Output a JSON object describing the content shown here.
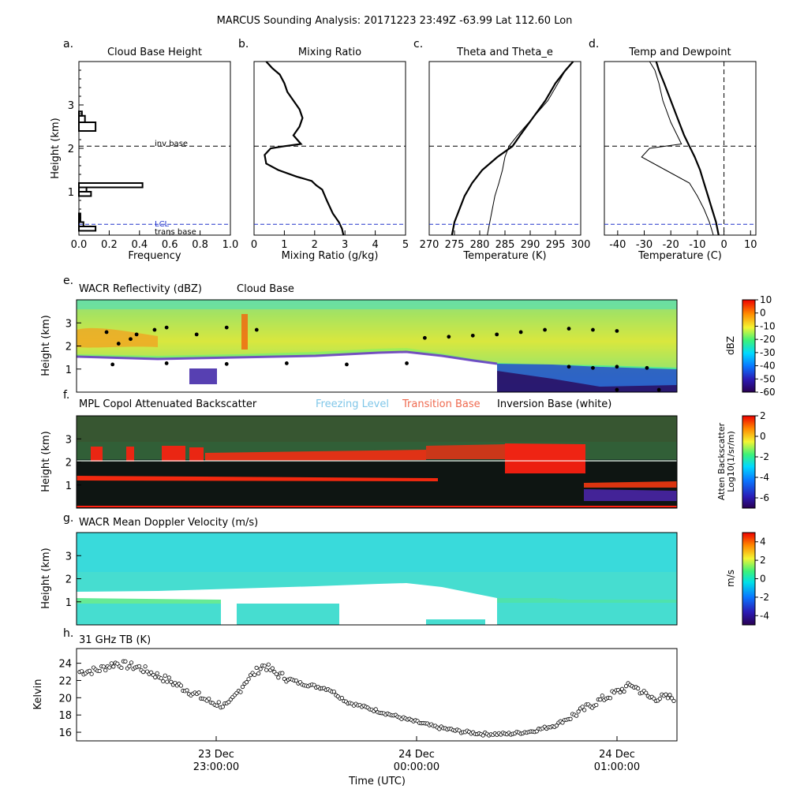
{
  "figure": {
    "title": "MARCUS Sounding Analysis: 20171223 23:49Z   -63.99 Lat  112.60 Lon",
    "x_axis_label": "Time (UTC)",
    "time_ticks": [
      {
        "date": "23 Dec",
        "time": "23:00:00"
      },
      {
        "date": "24 Dec",
        "time": "00:00:00"
      },
      {
        "date": "24 Dec",
        "time": "01:00:00"
      }
    ]
  },
  "chart_data": [
    {
      "id": "a",
      "letter": "a.",
      "type": "bar",
      "title": "Cloud Base Height",
      "xlabel": "Frequency",
      "ylabel": "Height (km)",
      "xlim": [
        0.0,
        1.0
      ],
      "ylim": [
        0,
        4
      ],
      "xticks": [
        "0.0",
        "0.2",
        "0.4",
        "0.6",
        "0.8",
        "1.0"
      ],
      "yticks": [
        "1",
        "2",
        "3"
      ],
      "bins": [
        {
          "lo": 0.1,
          "hi": 0.2,
          "v": 0.11
        },
        {
          "lo": 0.2,
          "hi": 0.3,
          "v": 0.03
        },
        {
          "lo": 0.3,
          "hi": 0.5,
          "v": 0.01
        },
        {
          "lo": 0.9,
          "hi": 1.0,
          "v": 0.08
        },
        {
          "lo": 1.0,
          "hi": 1.1,
          "v": 0.05
        },
        {
          "lo": 1.1,
          "hi": 1.2,
          "v": 0.42
        },
        {
          "lo": 2.4,
          "hi": 2.6,
          "v": 0.11
        },
        {
          "lo": 2.6,
          "hi": 2.75,
          "v": 0.04
        },
        {
          "lo": 2.75,
          "hi": 2.85,
          "v": 0.02
        }
      ],
      "inversion_base_km": 2.05,
      "lcl_km": 0.25,
      "annotations": {
        "inv": "inv base",
        "lcl": "LCL",
        "trans": "trans base"
      }
    },
    {
      "id": "b",
      "letter": "b.",
      "type": "line",
      "title": "Mixing Ratio",
      "xlabel": "Mixing Ratio (g/kg)",
      "xlim": [
        0,
        5
      ],
      "ylim": [
        0,
        4
      ],
      "xticks": [
        "0",
        "1",
        "2",
        "3",
        "4",
        "5"
      ],
      "series": [
        {
          "name": "mixing ratio",
          "x": [
            2.95,
            2.9,
            2.8,
            2.6,
            2.4,
            2.25,
            2.05,
            1.9,
            1.4,
            0.8,
            0.4,
            0.35,
            0.55,
            1.0,
            1.55,
            1.3,
            1.5,
            1.6,
            1.5,
            1.3,
            1.1,
            1.0,
            0.85,
            0.6,
            0.4
          ],
          "y": [
            0.0,
            0.15,
            0.3,
            0.5,
            0.8,
            1.05,
            1.15,
            1.25,
            1.35,
            1.5,
            1.65,
            1.85,
            2.0,
            2.05,
            2.1,
            2.3,
            2.5,
            2.7,
            2.9,
            3.1,
            3.3,
            3.5,
            3.7,
            3.85,
            4.0
          ]
        }
      ],
      "inversion_base_km": 2.05,
      "lcl_km": 0.25
    },
    {
      "id": "c",
      "letter": "c.",
      "type": "line",
      "title": "Theta and Theta_e",
      "xlabel": "Temperature (K)",
      "xlim": [
        270,
        300
      ],
      "ylim": [
        0,
        4
      ],
      "xticks": [
        "270",
        "275",
        "280",
        "285",
        "290",
        "295",
        "300"
      ],
      "series": [
        {
          "name": "theta_e",
          "x": [
            274.5,
            275.0,
            276.0,
            277.0,
            278.5,
            280.5,
            283.5,
            286.5,
            288.0,
            290.5,
            293.0,
            295.0,
            297.0,
            298.5
          ],
          "y": [
            0.0,
            0.3,
            0.6,
            0.9,
            1.2,
            1.5,
            1.8,
            2.05,
            2.3,
            2.7,
            3.1,
            3.5,
            3.8,
            4.0
          ]
        },
        {
          "name": "theta",
          "x": [
            281.5,
            282.0,
            282.5,
            283.0,
            283.8,
            284.5,
            285.0,
            285.8,
            287.5,
            290.5,
            293.5,
            295.5,
            297.0,
            298.5
          ],
          "y": [
            0.0,
            0.3,
            0.6,
            0.9,
            1.2,
            1.5,
            1.8,
            2.05,
            2.3,
            2.7,
            3.1,
            3.5,
            3.8,
            4.0
          ]
        }
      ],
      "inversion_base_km": 2.05,
      "lcl_km": 0.25
    },
    {
      "id": "d",
      "letter": "d.",
      "type": "line",
      "title": "Temp and Dewpoint",
      "xlabel": "Temperature (C)",
      "xlim": [
        -45,
        12
      ],
      "ylim": [
        0,
        4
      ],
      "xticks": [
        "-40",
        "-30",
        "-20",
        "-10",
        "0",
        "10"
      ],
      "xtick_values": [
        -40,
        -30,
        -20,
        -10,
        0,
        10
      ],
      "series": [
        {
          "name": "temperature",
          "x": [
            -2.0,
            -3.0,
            -4.5,
            -6.0,
            -7.5,
            -9.0,
            -11.0,
            -13.0,
            -15.0,
            -17.5,
            -20.0,
            -22.5,
            -24.5,
            -25.5
          ],
          "y": [
            0.0,
            0.3,
            0.6,
            0.9,
            1.2,
            1.5,
            1.8,
            2.05,
            2.3,
            2.7,
            3.1,
            3.5,
            3.8,
            4.0
          ]
        },
        {
          "name": "dewpoint",
          "x": [
            -4.0,
            -5.5,
            -7.5,
            -10.0,
            -13.0,
            -22.0,
            -31.0,
            -28.0,
            -16.0,
            -20.0,
            -23.0,
            -24.5,
            -26.0,
            -28.0
          ],
          "y": [
            0.0,
            0.3,
            0.6,
            0.9,
            1.2,
            1.5,
            1.8,
            2.0,
            2.1,
            2.6,
            3.1,
            3.5,
            3.8,
            4.0
          ]
        }
      ],
      "zero_line_c": 0,
      "inversion_base_km": 2.05,
      "lcl_km": 0.25
    },
    {
      "id": "e",
      "letter": "e.",
      "type": "heatmap",
      "title": "WACR Reflectivity (dBZ)",
      "overlay_label": "Cloud Base",
      "ylabel": "Height (km)",
      "ylim": [
        0,
        4
      ],
      "yticks": [
        "1",
        "2",
        "3"
      ],
      "colorbar": {
        "label": "dBZ",
        "range": [
          -60,
          10
        ],
        "ticks": [
          "10",
          "0",
          "-10",
          "-20",
          "-30",
          "-40",
          "-50",
          "-60"
        ]
      },
      "cloud_base_points": [
        {
          "t": 0.05,
          "h": 2.6
        },
        {
          "t": 0.07,
          "h": 2.1
        },
        {
          "t": 0.09,
          "h": 2.3
        },
        {
          "t": 0.1,
          "h": 2.5
        },
        {
          "t": 0.13,
          "h": 2.7
        },
        {
          "t": 0.15,
          "h": 2.8
        },
        {
          "t": 0.2,
          "h": 2.5
        },
        {
          "t": 0.25,
          "h": 2.8
        },
        {
          "t": 0.3,
          "h": 2.7
        },
        {
          "t": 0.06,
          "h": 1.2
        },
        {
          "t": 0.15,
          "h": 1.25
        },
        {
          "t": 0.25,
          "h": 1.22
        },
        {
          "t": 0.35,
          "h": 1.25
        },
        {
          "t": 0.45,
          "h": 1.2
        },
        {
          "t": 0.55,
          "h": 1.25
        },
        {
          "t": 0.58,
          "h": 2.35
        },
        {
          "t": 0.62,
          "h": 2.4
        },
        {
          "t": 0.66,
          "h": 2.45
        },
        {
          "t": 0.7,
          "h": 2.5
        },
        {
          "t": 0.74,
          "h": 2.6
        },
        {
          "t": 0.78,
          "h": 2.7
        },
        {
          "t": 0.82,
          "h": 2.75
        },
        {
          "t": 0.86,
          "h": 2.7
        },
        {
          "t": 0.9,
          "h": 2.65
        },
        {
          "t": 0.82,
          "h": 1.1
        },
        {
          "t": 0.86,
          "h": 1.05
        },
        {
          "t": 0.9,
          "h": 1.1
        },
        {
          "t": 0.95,
          "h": 1.05
        },
        {
          "t": 0.9,
          "h": 0.1
        },
        {
          "t": 0.97,
          "h": 0.1
        }
      ]
    },
    {
      "id": "f",
      "letter": "f.",
      "type": "heatmap",
      "title": "MPL Copol Attenuated Backscatter",
      "legend": {
        "freezing": "Freezing Level",
        "transition": "Transition Base",
        "inversion": "Inversion Base (white)"
      },
      "legend_colors": {
        "freezing": "#7fc6e8",
        "transition": "#ef6a4f",
        "inversion": "#000000"
      },
      "ylabel": "Height (km)",
      "ylim": [
        0,
        4
      ],
      "yticks": [
        "1",
        "2",
        "3"
      ],
      "inversion_base_km": 2.05,
      "colorbar": {
        "label": "Atten Backscatter",
        "label2": "Log10(1/sr/m)",
        "range": [
          -7,
          2
        ],
        "ticks": [
          "2",
          "0",
          "-2",
          "-4",
          "-6"
        ]
      }
    },
    {
      "id": "g",
      "letter": "g.",
      "type": "heatmap",
      "title": "WACR Mean Doppler Velocity (m/s)",
      "ylabel": "Height (km)",
      "ylim": [
        0,
        4
      ],
      "yticks": [
        "1",
        "2",
        "3"
      ],
      "colorbar": {
        "label": "m/s",
        "range": [
          -5,
          5
        ],
        "ticks": [
          "4",
          "2",
          "0",
          "-2",
          "-4"
        ]
      }
    },
    {
      "id": "h",
      "letter": "h.",
      "type": "scatter",
      "title": "31 GHz TB (K)",
      "ylabel": "Kelvin",
      "ylim": [
        15,
        25.7
      ],
      "yticks": [
        "16",
        "18",
        "20",
        "22",
        "24"
      ],
      "ytick_values": [
        16,
        18,
        20,
        22,
        24
      ],
      "tb_keypoints": [
        {
          "t": 0.0,
          "v": 23.0
        },
        {
          "t": 0.03,
          "v": 23.2
        },
        {
          "t": 0.06,
          "v": 24.0
        },
        {
          "t": 0.1,
          "v": 23.5
        },
        {
          "t": 0.15,
          "v": 22.0
        },
        {
          "t": 0.22,
          "v": 19.5
        },
        {
          "t": 0.25,
          "v": 19.0
        },
        {
          "t": 0.28,
          "v": 22.0
        },
        {
          "t": 0.31,
          "v": 23.8
        },
        {
          "t": 0.33,
          "v": 22.8
        },
        {
          "t": 0.37,
          "v": 21.7
        },
        {
          "t": 0.42,
          "v": 21.0
        },
        {
          "t": 0.45,
          "v": 19.5
        },
        {
          "t": 0.5,
          "v": 18.5
        },
        {
          "t": 0.55,
          "v": 17.5
        },
        {
          "t": 0.6,
          "v": 16.6
        },
        {
          "t": 0.64,
          "v": 16.1
        },
        {
          "t": 0.68,
          "v": 15.8
        },
        {
          "t": 0.72,
          "v": 15.8
        },
        {
          "t": 0.76,
          "v": 16.1
        },
        {
          "t": 0.8,
          "v": 16.8
        },
        {
          "t": 0.84,
          "v": 18.3
        },
        {
          "t": 0.87,
          "v": 19.5
        },
        {
          "t": 0.9,
          "v": 20.5
        },
        {
          "t": 0.93,
          "v": 21.5
        },
        {
          "t": 0.96,
          "v": 20.0
        },
        {
          "t": 1.0,
          "v": 20.0
        }
      ]
    }
  ]
}
